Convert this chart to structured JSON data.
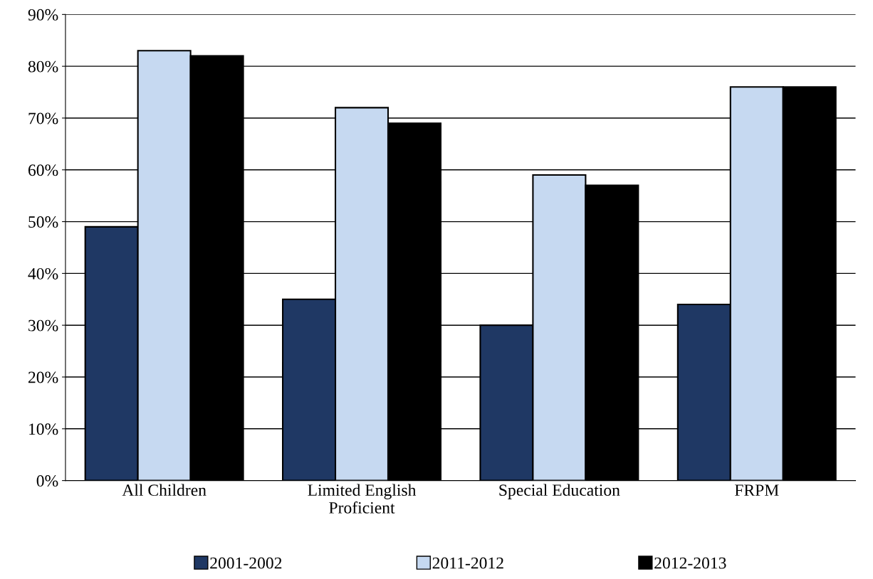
{
  "chart_data": {
    "type": "bar",
    "categories": [
      "All Children",
      "Limited English\nProficient",
      "Special Education",
      "FRPM"
    ],
    "series": [
      {
        "name": "2001-2002",
        "color": "#1f3864",
        "values": [
          49,
          35,
          30,
          34
        ]
      },
      {
        "name": "2011-2012",
        "color": "#c6d9f1",
        "values": [
          83,
          72,
          59,
          76
        ]
      },
      {
        "name": "2012-2013",
        "color": "#000000",
        "values": [
          82,
          69,
          57,
          76
        ]
      }
    ],
    "ylim": [
      0,
      90
    ],
    "yticks": [
      {
        "value": 0,
        "label": "0%"
      },
      {
        "value": 10,
        "label": "10%"
      },
      {
        "value": 20,
        "label": "20%"
      },
      {
        "value": 30,
        "label": "30%"
      },
      {
        "value": 40,
        "label": "40%"
      },
      {
        "value": 50,
        "label": "50%"
      },
      {
        "value": 60,
        "label": "60%"
      },
      {
        "value": 70,
        "label": "70%"
      },
      {
        "value": 80,
        "label": "80%"
      },
      {
        "value": 90,
        "label": "90%"
      }
    ],
    "grid": "y",
    "legend": "bottom"
  }
}
